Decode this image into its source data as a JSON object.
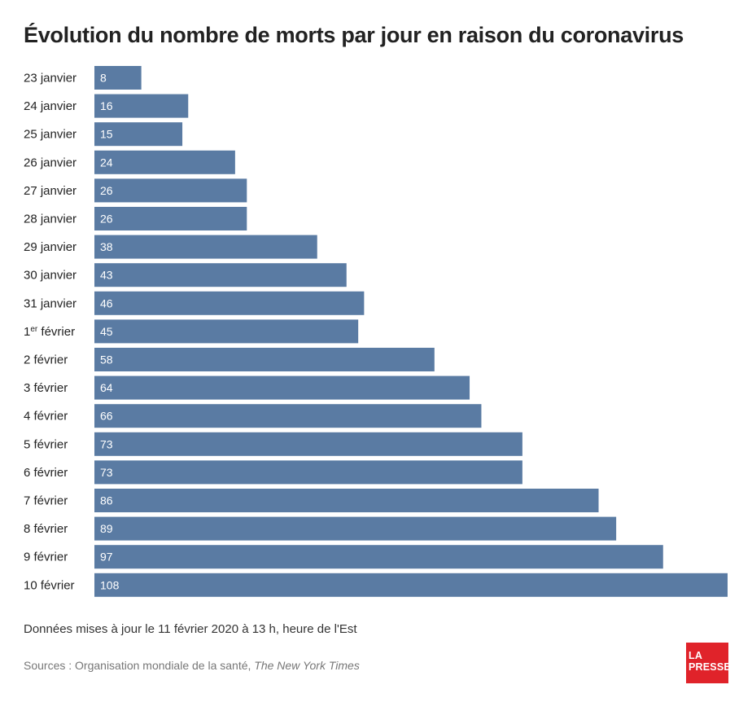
{
  "title": "Évolution du nombre de morts par jour en raison du coronavirus",
  "note": "Données mises à jour le 11 février 2020 à 13 h, heure de l'Est",
  "sources": {
    "prefix": "Sources : Organisation mondiale de la santé, ",
    "publication": "The New York Times"
  },
  "logo": {
    "line1": "LA",
    "line2": "PRESSE",
    "color": "#e0232a"
  },
  "chart_data": {
    "type": "bar",
    "orientation": "horizontal",
    "categories": [
      "23 janvier",
      "24 janvier",
      "25 janvier",
      "26 janvier",
      "27 janvier",
      "28 janvier",
      "29 janvier",
      "30 janvier",
      "31 janvier",
      "1er février",
      "2 février",
      "3 février",
      "4 février",
      "5 février",
      "6 février",
      "7 février",
      "8 février",
      "9 février",
      "10 février"
    ],
    "values": [
      8,
      16,
      15,
      24,
      26,
      26,
      38,
      43,
      46,
      45,
      58,
      64,
      66,
      73,
      73,
      86,
      89,
      97,
      108
    ],
    "xlim": [
      0,
      108
    ],
    "grid": false,
    "legend": "none",
    "bar_color": "#5a7ba3",
    "label_color": "#ffffff"
  }
}
